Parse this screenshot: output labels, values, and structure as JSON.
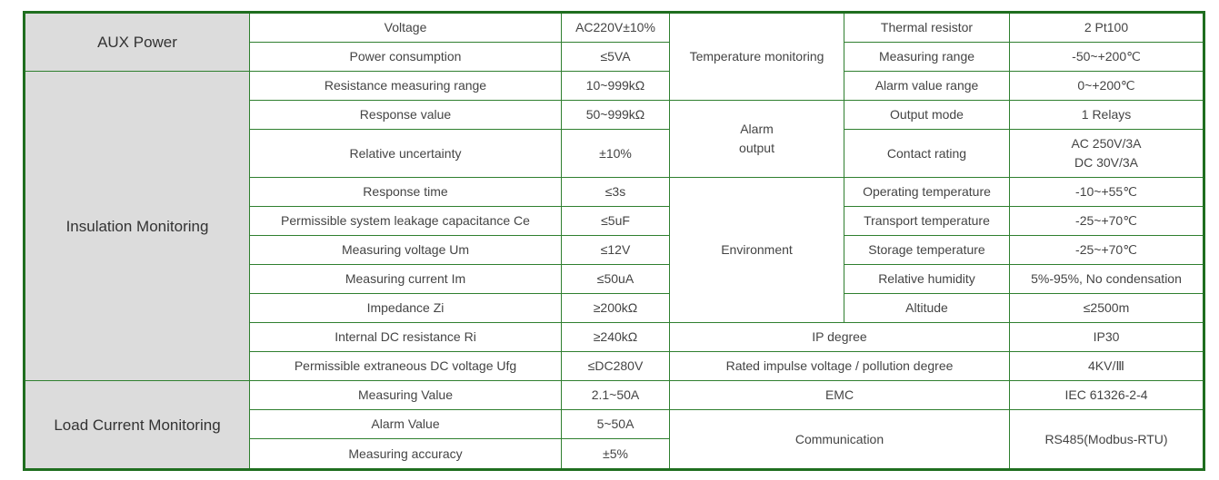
{
  "left": [
    {
      "group": "AUX Power",
      "items": [
        [
          "Voltage",
          "AC220V±10%"
        ],
        [
          "Power consumption",
          "≤5VA"
        ]
      ]
    },
    {
      "group": "Insulation Monitoring",
      "items": [
        [
          "Resistance measuring range",
          "10~999kΩ"
        ],
        [
          "Response value",
          "50~999kΩ"
        ],
        [
          "Relative uncertainty",
          "±10%"
        ],
        [
          "Response time",
          "≤3s"
        ],
        [
          "Permissible system leakage capacitance Ce",
          "≤5uF"
        ],
        [
          "Measuring voltage Um",
          "≤12V"
        ],
        [
          "Measuring current Im",
          "≤50uA"
        ],
        [
          "Impedance Zi",
          "≥200kΩ"
        ],
        [
          "Internal DC resistance Ri",
          "≥240kΩ"
        ],
        [
          "Permissible extraneous DC voltage Ufg",
          "≤DC280V"
        ]
      ]
    },
    {
      "group": "Load Current Monitoring",
      "items": [
        [
          "Measuring Value",
          "2.1~50A"
        ],
        [
          "Alarm Value",
          "5~50A"
        ],
        [
          "Measuring accuracy",
          "±5%"
        ]
      ]
    }
  ],
  "right": [
    {
      "group": "Temperature monitoring",
      "items": [
        [
          "Thermal resistor",
          "2 Pt100"
        ],
        [
          "Measuring range",
          "-50~+200℃"
        ],
        [
          "Alarm value range",
          "0~+200℃"
        ]
      ]
    },
    {
      "group": "Alarm output",
      "items": [
        [
          "Output mode",
          "1 Relays"
        ],
        [
          "Contact rating",
          [
            "AC 250V/3A",
            "DC 30V/3A"
          ]
        ]
      ]
    },
    {
      "group": "Environment",
      "items": [
        [
          "Operating temperature",
          "-10~+55℃"
        ],
        [
          "Transport temperature",
          "-25~+70℃"
        ],
        [
          "Storage temperature",
          "-25~+70℃"
        ],
        [
          "Relative humidity",
          "5%-95%, No condensation"
        ],
        [
          "Altitude",
          "≤2500m"
        ]
      ]
    }
  ],
  "right_single": [
    [
      "IP degree",
      "IP30"
    ],
    [
      "Rated impulse voltage / pollution degree",
      "4KV/Ⅲ"
    ],
    [
      "EMC",
      "IEC 61326-2-4"
    ],
    [
      "Communication",
      "RS485(Modbus-RTU)"
    ]
  ]
}
